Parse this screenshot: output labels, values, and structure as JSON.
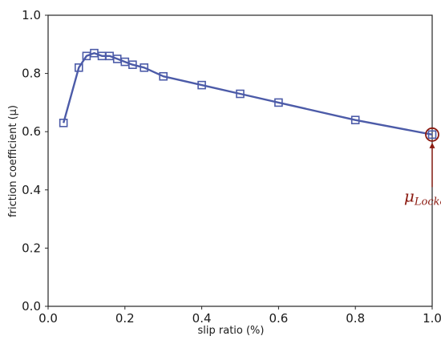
{
  "chart_data": {
    "type": "line",
    "xlabel": "slip ratio (%)",
    "ylabel": "friction coefficient (μ)",
    "xlim": [
      0.0,
      1.0
    ],
    "ylim": [
      0.0,
      1.0
    ],
    "x_ticks": [
      0.0,
      0.2,
      0.4,
      0.6,
      0.8,
      1.0
    ],
    "y_ticks": [
      0.0,
      0.2,
      0.4,
      0.6,
      0.8,
      1.0
    ],
    "grid": false,
    "series": [
      {
        "color": "#4c5ba8",
        "marker": "square",
        "x": [
          0.04,
          0.08,
          0.1,
          0.12,
          0.14,
          0.16,
          0.18,
          0.2,
          0.22,
          0.25,
          0.3,
          0.4,
          0.5,
          0.6,
          0.8,
          1.0
        ],
        "y": [
          0.63,
          0.82,
          0.86,
          0.87,
          0.86,
          0.86,
          0.85,
          0.84,
          0.83,
          0.82,
          0.79,
          0.76,
          0.73,
          0.7,
          0.64,
          0.59
        ]
      }
    ],
    "annotations": [
      {
        "text_main": "μ",
        "text_sub": "Locked",
        "point": [
          1.0,
          0.59
        ],
        "text_at": [
          0.99,
          0.36
        ],
        "color": "#8b1a10",
        "highlight": "circle"
      }
    ]
  }
}
